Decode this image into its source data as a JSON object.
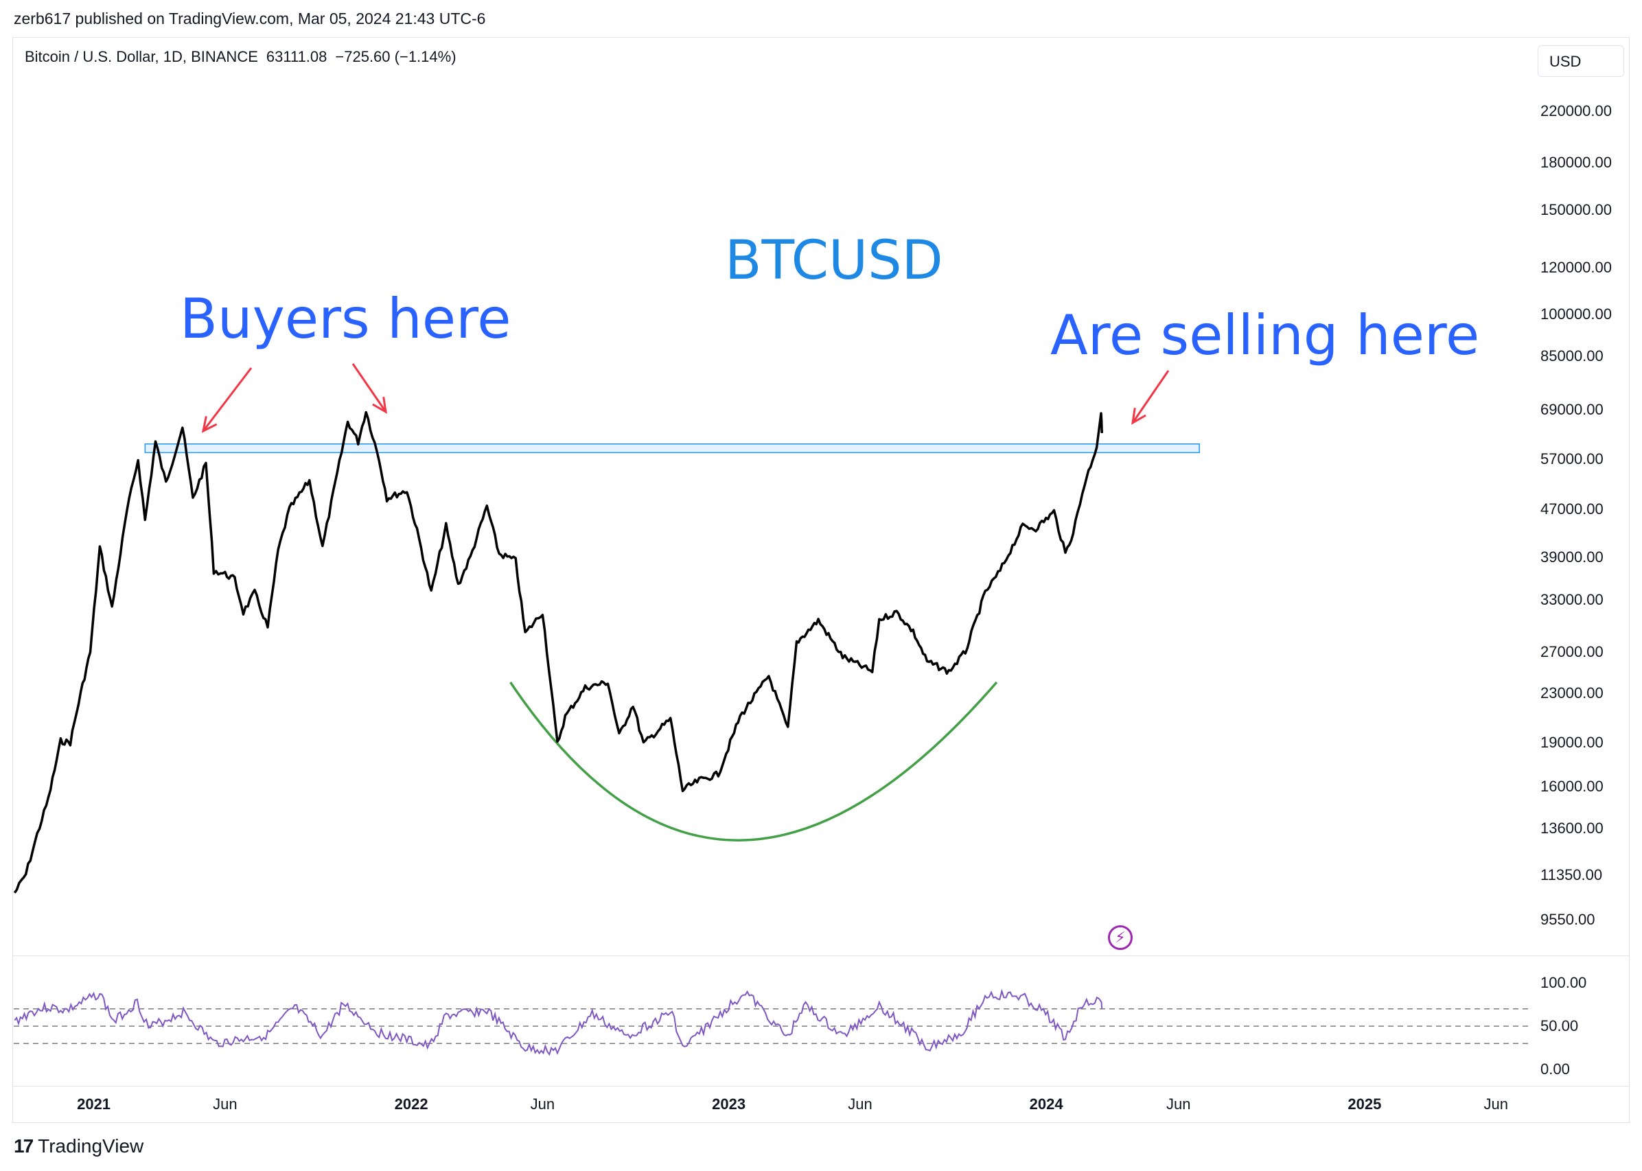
{
  "publisher": "zerb617 published on TradingView.com, Mar 05, 2024 21:43 UTC-6",
  "header": {
    "symbol": "Bitcoin / U.S. Dollar, 1D, BINANCE",
    "last": "63111.08",
    "change": "−725.60 (−1.14%)"
  },
  "currency_button": "USD",
  "annotations": {
    "title": "BTCUSD",
    "buyers": "Buyers here",
    "selling": "Are selling here"
  },
  "brand": {
    "logo": "TradingView"
  },
  "colors": {
    "price_line": "#000000",
    "resistance_fill": "#e3f2fd",
    "resistance_stroke": "#2196f3",
    "cup_curve": "#43a047",
    "arrow": "#f23645",
    "rsi_line": "#7e57c2",
    "annotation_text": "#2962ff"
  },
  "chart_data": {
    "type": "line",
    "scale": "log",
    "y_tick_labels": [
      "220000.00",
      "180000.00",
      "150000.00",
      "120000.00",
      "100000.00",
      "85000.00",
      "69000.00",
      "57000.00",
      "47000.00",
      "39000.00",
      "33000.00",
      "27000.00",
      "23000.00",
      "19000.00",
      "16000.00",
      "13600.00",
      "11350.00",
      "9550.00"
    ],
    "x_tick_labels": [
      {
        "label": "2021",
        "bold": true
      },
      {
        "label": "Jun",
        "bold": false
      },
      {
        "label": "2022",
        "bold": true
      },
      {
        "label": "Jun",
        "bold": false
      },
      {
        "label": "2023",
        "bold": true
      },
      {
        "label": "Jun",
        "bold": false
      },
      {
        "label": "2024",
        "bold": true
      },
      {
        "label": "Jun",
        "bold": false
      },
      {
        "label": "2025",
        "bold": true
      },
      {
        "label": "Jun",
        "bold": false
      }
    ],
    "series": [
      {
        "values": [
          [
            "2020-10-02",
            10600
          ],
          [
            "2020-10-15",
            11400
          ],
          [
            "2020-10-28",
            13300
          ],
          [
            "2020-11-10",
            15300
          ],
          [
            "2020-11-24",
            19100
          ],
          [
            "2020-12-05",
            19000
          ],
          [
            "2020-12-17",
            23000
          ],
          [
            "2020-12-28",
            27000
          ],
          [
            "2021-01-08",
            40500
          ],
          [
            "2021-01-22",
            32000
          ],
          [
            "2021-02-08",
            46500
          ],
          [
            "2021-02-21",
            57000
          ],
          [
            "2021-03-01",
            45000
          ],
          [
            "2021-03-13",
            61000
          ],
          [
            "2021-03-25",
            52000
          ],
          [
            "2021-04-13",
            64500
          ],
          [
            "2021-04-25",
            49000
          ],
          [
            "2021-05-10",
            56000
          ],
          [
            "2021-05-19",
            37000
          ],
          [
            "2021-06-01",
            36500
          ],
          [
            "2021-06-12",
            35800
          ],
          [
            "2021-06-22",
            31500
          ],
          [
            "2021-07-05",
            34000
          ],
          [
            "2021-07-20",
            29700
          ],
          [
            "2021-08-01",
            40000
          ],
          [
            "2021-08-14",
            47000
          ],
          [
            "2021-09-06",
            52500
          ],
          [
            "2021-09-21",
            40500
          ],
          [
            "2021-10-01",
            48000
          ],
          [
            "2021-10-20",
            66000
          ],
          [
            "2021-11-01",
            61000
          ],
          [
            "2021-11-10",
            68700
          ],
          [
            "2021-11-25",
            57000
          ],
          [
            "2021-12-04",
            49000
          ],
          [
            "2021-12-27",
            50500
          ],
          [
            "2022-01-10",
            41800
          ],
          [
            "2022-01-24",
            34000
          ],
          [
            "2022-02-10",
            44000
          ],
          [
            "2022-02-24",
            35000
          ],
          [
            "2022-03-10",
            39000
          ],
          [
            "2022-03-29",
            47500
          ],
          [
            "2022-04-12",
            39500
          ],
          [
            "2022-05-01",
            38500
          ],
          [
            "2022-05-12",
            29000
          ],
          [
            "2022-06-01",
            31500
          ],
          [
            "2022-06-18",
            18900
          ],
          [
            "2022-06-27",
            21000
          ],
          [
            "2022-07-20",
            23500
          ],
          [
            "2022-08-15",
            24000
          ],
          [
            "2022-08-28",
            19500
          ],
          [
            "2022-09-13",
            22000
          ],
          [
            "2022-09-25",
            18900
          ],
          [
            "2022-10-26",
            20800
          ],
          [
            "2022-11-09",
            15800
          ],
          [
            "2022-11-28",
            16400
          ],
          [
            "2022-12-20",
            16800
          ],
          [
            "2023-01-14",
            21000
          ],
          [
            "2023-02-16",
            24600
          ],
          [
            "2023-03-10",
            20000
          ],
          [
            "2023-03-20",
            28000
          ],
          [
            "2023-04-14",
            30500
          ],
          [
            "2023-05-12",
            26500
          ],
          [
            "2023-06-15",
            25000
          ],
          [
            "2023-06-23",
            30600
          ],
          [
            "2023-07-13",
            31500
          ],
          [
            "2023-08-01",
            29200
          ],
          [
            "2023-08-17",
            26000
          ],
          [
            "2023-09-11",
            25000
          ],
          [
            "2023-09-30",
            27000
          ],
          [
            "2023-10-23",
            34000
          ],
          [
            "2023-11-09",
            37000
          ],
          [
            "2023-12-05",
            44000
          ],
          [
            "2023-12-20",
            43600
          ],
          [
            "2024-01-10",
            46500
          ],
          [
            "2024-01-23",
            39500
          ],
          [
            "2024-02-01",
            43000
          ],
          [
            "2024-02-14",
            51800
          ],
          [
            "2024-02-28",
            60000
          ],
          [
            "2024-03-04",
            68300
          ],
          [
            "2024-03-05",
            63111
          ]
        ]
      }
    ],
    "rsi": {
      "y_tick_labels": [
        "100.00",
        "50.00",
        "0.00"
      ],
      "levels": [
        70,
        50,
        30
      ],
      "values": [
        [
          "2020-10-02",
          55
        ],
        [
          "2020-10-20",
          66
        ],
        [
          "2020-11-10",
          72
        ],
        [
          "2020-12-01",
          68
        ],
        [
          "2021-01-08",
          88
        ],
        [
          "2021-01-24",
          55
        ],
        [
          "2021-02-20",
          78
        ],
        [
          "2021-03-05",
          48
        ],
        [
          "2021-04-14",
          66
        ],
        [
          "2021-05-20",
          30
        ],
        [
          "2021-06-22",
          35
        ],
        [
          "2021-07-20",
          40
        ],
        [
          "2021-08-20",
          72
        ],
        [
          "2021-09-21",
          38
        ],
        [
          "2021-10-15",
          76
        ],
        [
          "2021-11-25",
          42
        ],
        [
          "2021-12-15",
          38
        ],
        [
          "2022-01-22",
          26
        ],
        [
          "2022-02-10",
          62
        ],
        [
          "2022-03-29",
          68
        ],
        [
          "2022-05-12",
          24
        ],
        [
          "2022-06-18",
          22
        ],
        [
          "2022-07-28",
          64
        ],
        [
          "2022-09-05",
          38
        ],
        [
          "2022-10-28",
          66
        ],
        [
          "2022-11-09",
          24
        ],
        [
          "2023-01-20",
          90
        ],
        [
          "2023-03-10",
          36
        ],
        [
          "2023-03-28",
          75
        ],
        [
          "2023-05-12",
          38
        ],
        [
          "2023-06-23",
          74
        ],
        [
          "2023-08-18",
          26
        ],
        [
          "2023-09-25",
          42
        ],
        [
          "2023-10-25",
          86
        ],
        [
          "2023-12-05",
          84
        ],
        [
          "2024-01-05",
          60
        ],
        [
          "2024-01-23",
          36
        ],
        [
          "2024-02-14",
          80
        ],
        [
          "2024-03-04",
          78
        ],
        [
          "2024-03-05",
          70
        ]
      ]
    },
    "overlays": {
      "resistance_zone": {
        "from": "2021-03-01",
        "to": "2024-06-25",
        "low": 58500,
        "high": 60500
      },
      "cup_curve": {
        "from": "2022-04-25",
        "bottom": "2022-12-25",
        "to": "2023-11-05",
        "edge_level": 24000,
        "bottom_level": 13000
      }
    }
  }
}
